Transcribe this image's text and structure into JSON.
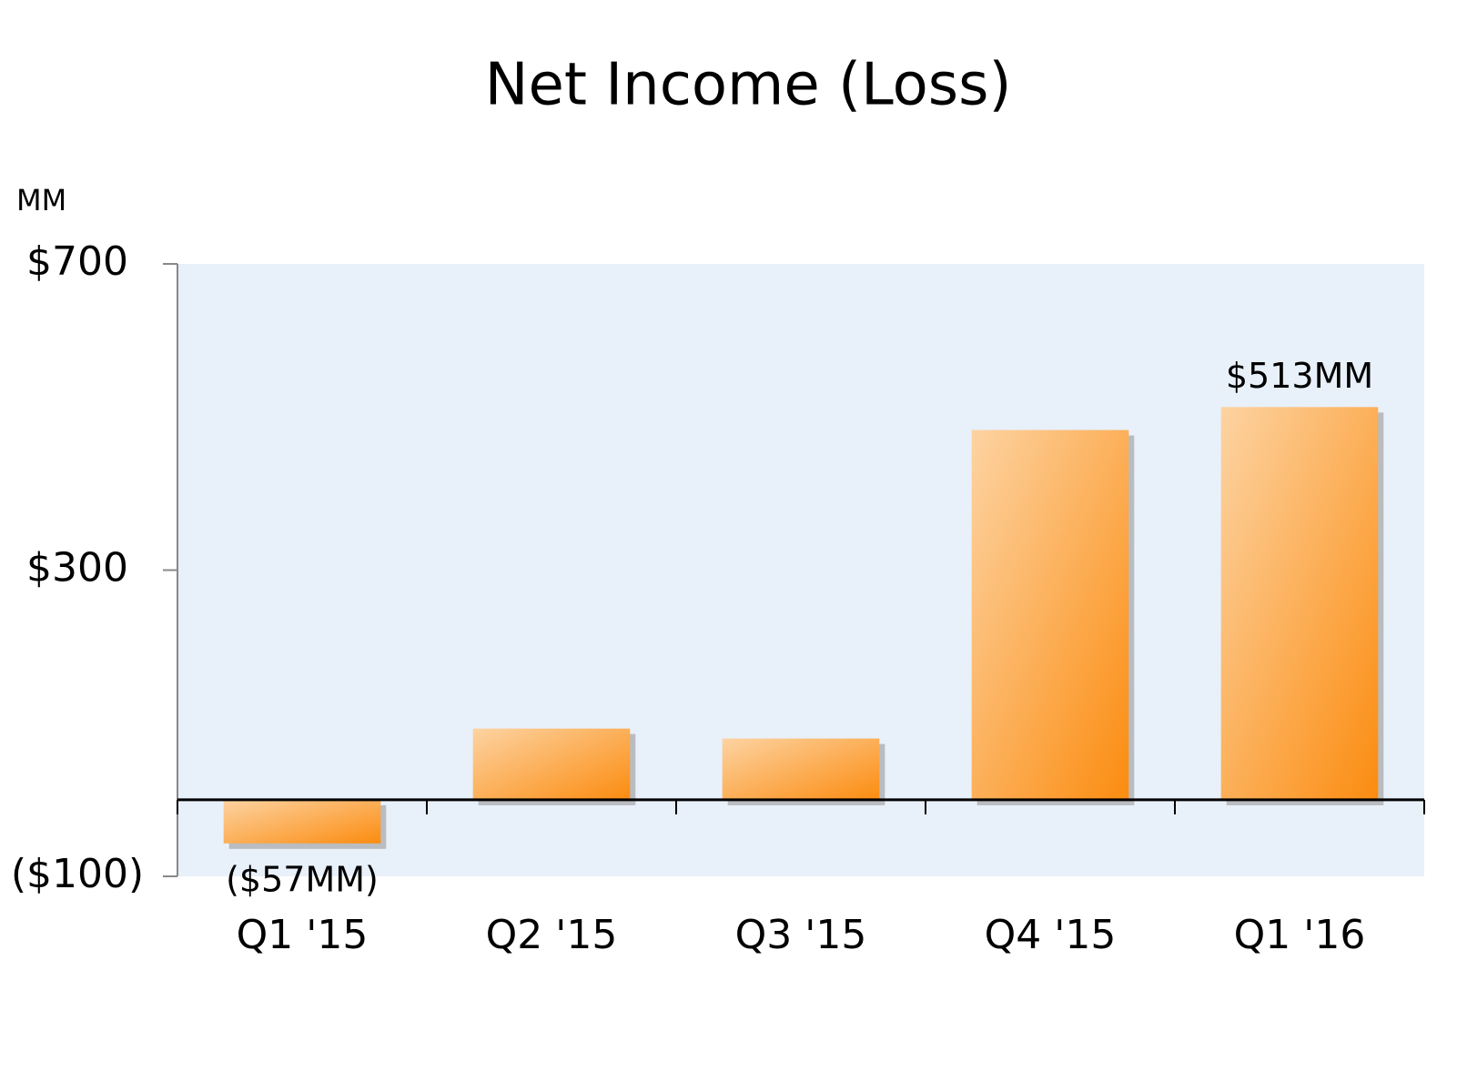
{
  "chart_data": {
    "type": "bar",
    "title": "Net Income (Loss)",
    "y_label": "MM",
    "categories": [
      "Q1 '15",
      "Q2 '15",
      "Q3 '15",
      "Q4 '15",
      "Q1 '16"
    ],
    "values": [
      -57,
      93,
      80,
      483,
      513
    ],
    "value_labels": [
      "($57MM)",
      null,
      null,
      null,
      "$513MM"
    ],
    "color": "#fb8c10",
    "ylim": [
      -100,
      700
    ],
    "yticks": [
      {
        "value": -100,
        "label": "($100)"
      },
      {
        "value": 300,
        "label": "$300"
      },
      {
        "value": 700,
        "label": "$700"
      }
    ],
    "grid": false
  }
}
